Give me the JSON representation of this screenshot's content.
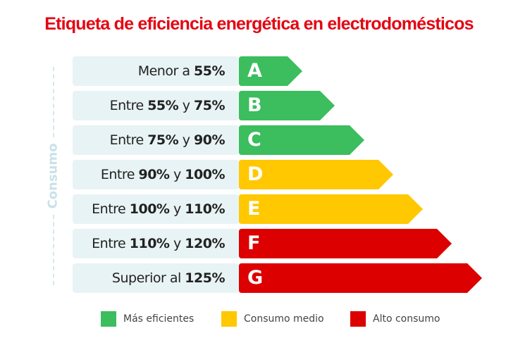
{
  "title": "Etiqueta de eficiencia energética en electrodomésticos",
  "side_label": "Consumo",
  "colors": {
    "green": "#3cbd5e",
    "yellow": "#ffc800",
    "red": "#dc0000"
  },
  "rows": [
    {
      "pre": "Menor a ",
      "b1": "55%",
      "mid": "",
      "b2": "",
      "letter": "A",
      "color": "green"
    },
    {
      "pre": "Entre ",
      "b1": "55%",
      "mid": " y ",
      "b2": "75%",
      "letter": "B",
      "color": "green"
    },
    {
      "pre": "Entre ",
      "b1": "75%",
      "mid": " y ",
      "b2": "90%",
      "letter": "C",
      "color": "green"
    },
    {
      "pre": "Entre ",
      "b1": "90%",
      "mid": " y ",
      "b2": "100%",
      "letter": "D",
      "color": "yellow"
    },
    {
      "pre": "Entre ",
      "b1": "100%",
      "mid": " y ",
      "b2": "110%",
      "letter": "E",
      "color": "yellow"
    },
    {
      "pre": "Entre ",
      "b1": "110%",
      "mid": " y ",
      "b2": "120%",
      "letter": "F",
      "color": "red"
    },
    {
      "pre": "Superior al ",
      "b1": "125%",
      "mid": "",
      "b2": "",
      "letter": "G",
      "color": "red"
    }
  ],
  "legend": [
    {
      "label": "Más eficientes",
      "color": "green"
    },
    {
      "label": "Consumo medio",
      "color": "yellow"
    },
    {
      "label": "Alto consumo",
      "color": "red"
    }
  ]
}
